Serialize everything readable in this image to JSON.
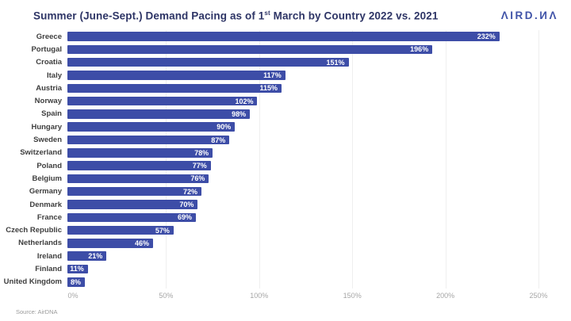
{
  "header": {
    "title_pre": "Summer (June-Sept.) Demand Pacing as of 1",
    "title_sup": "st",
    "title_post": " March by Country 2022 vs. 2021",
    "logo_display": "ΛIRD.ИΛ",
    "logo_name": "AIRDNA"
  },
  "chart_data": {
    "type": "bar",
    "orientation": "horizontal",
    "title": "Summer (June-Sept.) Demand Pacing as of 1st March by Country 2022 vs. 2021",
    "categories": [
      "Greece",
      "Portugal",
      "Croatia",
      "Italy",
      "Austria",
      "Norway",
      "Spain",
      "Hungary",
      "Sweden",
      "Switzerland",
      "Poland",
      "Belgium",
      "Germany",
      "Denmark",
      "France",
      "Czech Republic",
      "Netherlands",
      "Ireland",
      "Finland",
      "United Kingdom"
    ],
    "values": [
      232,
      196,
      151,
      117,
      115,
      102,
      98,
      90,
      87,
      78,
      77,
      76,
      72,
      70,
      69,
      57,
      46,
      21,
      11,
      8
    ],
    "value_labels": [
      "232%",
      "196%",
      "151%",
      "117%",
      "115%",
      "102%",
      "98%",
      "90%",
      "87%",
      "78%",
      "77%",
      "76%",
      "72%",
      "70%",
      "69%",
      "57%",
      "46%",
      "21%",
      "11%",
      "8%"
    ],
    "xlim": [
      0,
      250
    ],
    "x_ticks": [
      0,
      50,
      100,
      150,
      200,
      250
    ],
    "x_tick_labels": [
      "0%",
      "50%",
      "100%",
      "150%",
      "200%",
      "250%"
    ],
    "bar_color": "#3d4da7",
    "grid": true,
    "legend": null
  },
  "footer": {
    "source": "Source: AirDNA"
  }
}
